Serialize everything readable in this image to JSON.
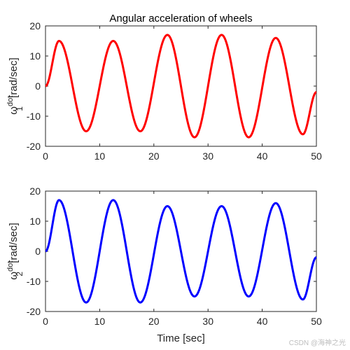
{
  "watermark": "CSDN @海神之光",
  "chart_data": [
    {
      "type": "line",
      "title": "Angular acceleration of wheels",
      "ylabel_base": "ω",
      "ylabel_sup": "dot",
      "ylabel_sub": "1",
      "ylabel_unit": " [rad/sec]",
      "xlabel": "",
      "xlim": [
        0,
        50
      ],
      "ylim": [
        -20,
        20
      ],
      "xticks": [
        0,
        10,
        20,
        30,
        40,
        50
      ],
      "yticks": [
        -20,
        -10,
        0,
        10,
        20
      ],
      "grid": false,
      "color": "#ff0000",
      "series": [
        {
          "x": [
            0,
            2.5,
            7.5,
            12.5,
            17.5,
            22.5,
            27.5,
            32.5,
            37.5,
            42.5,
            47.5,
            50
          ],
          "values": [
            0,
            15,
            -15,
            15,
            -15,
            17,
            -17,
            17,
            -17,
            16,
            -16,
            -2
          ]
        }
      ]
    },
    {
      "type": "line",
      "title": "",
      "ylabel_base": "ω",
      "ylabel_sup": "dot",
      "ylabel_sub": "2",
      "ylabel_unit": " [rad/sec]",
      "xlabel": "Time [sec]",
      "xlim": [
        0,
        50
      ],
      "ylim": [
        -20,
        20
      ],
      "xticks": [
        0,
        10,
        20,
        30,
        40,
        50
      ],
      "yticks": [
        -20,
        -10,
        0,
        10,
        20
      ],
      "grid": false,
      "color": "#0000ff",
      "series": [
        {
          "x": [
            0,
            2.5,
            7.5,
            12.5,
            17.5,
            22.5,
            27.5,
            32.5,
            37.5,
            42.5,
            47.5,
            50
          ],
          "values": [
            0,
            17,
            -17,
            17,
            -17,
            15,
            -15,
            15,
            -15,
            16,
            -16,
            -2
          ]
        }
      ]
    }
  ]
}
